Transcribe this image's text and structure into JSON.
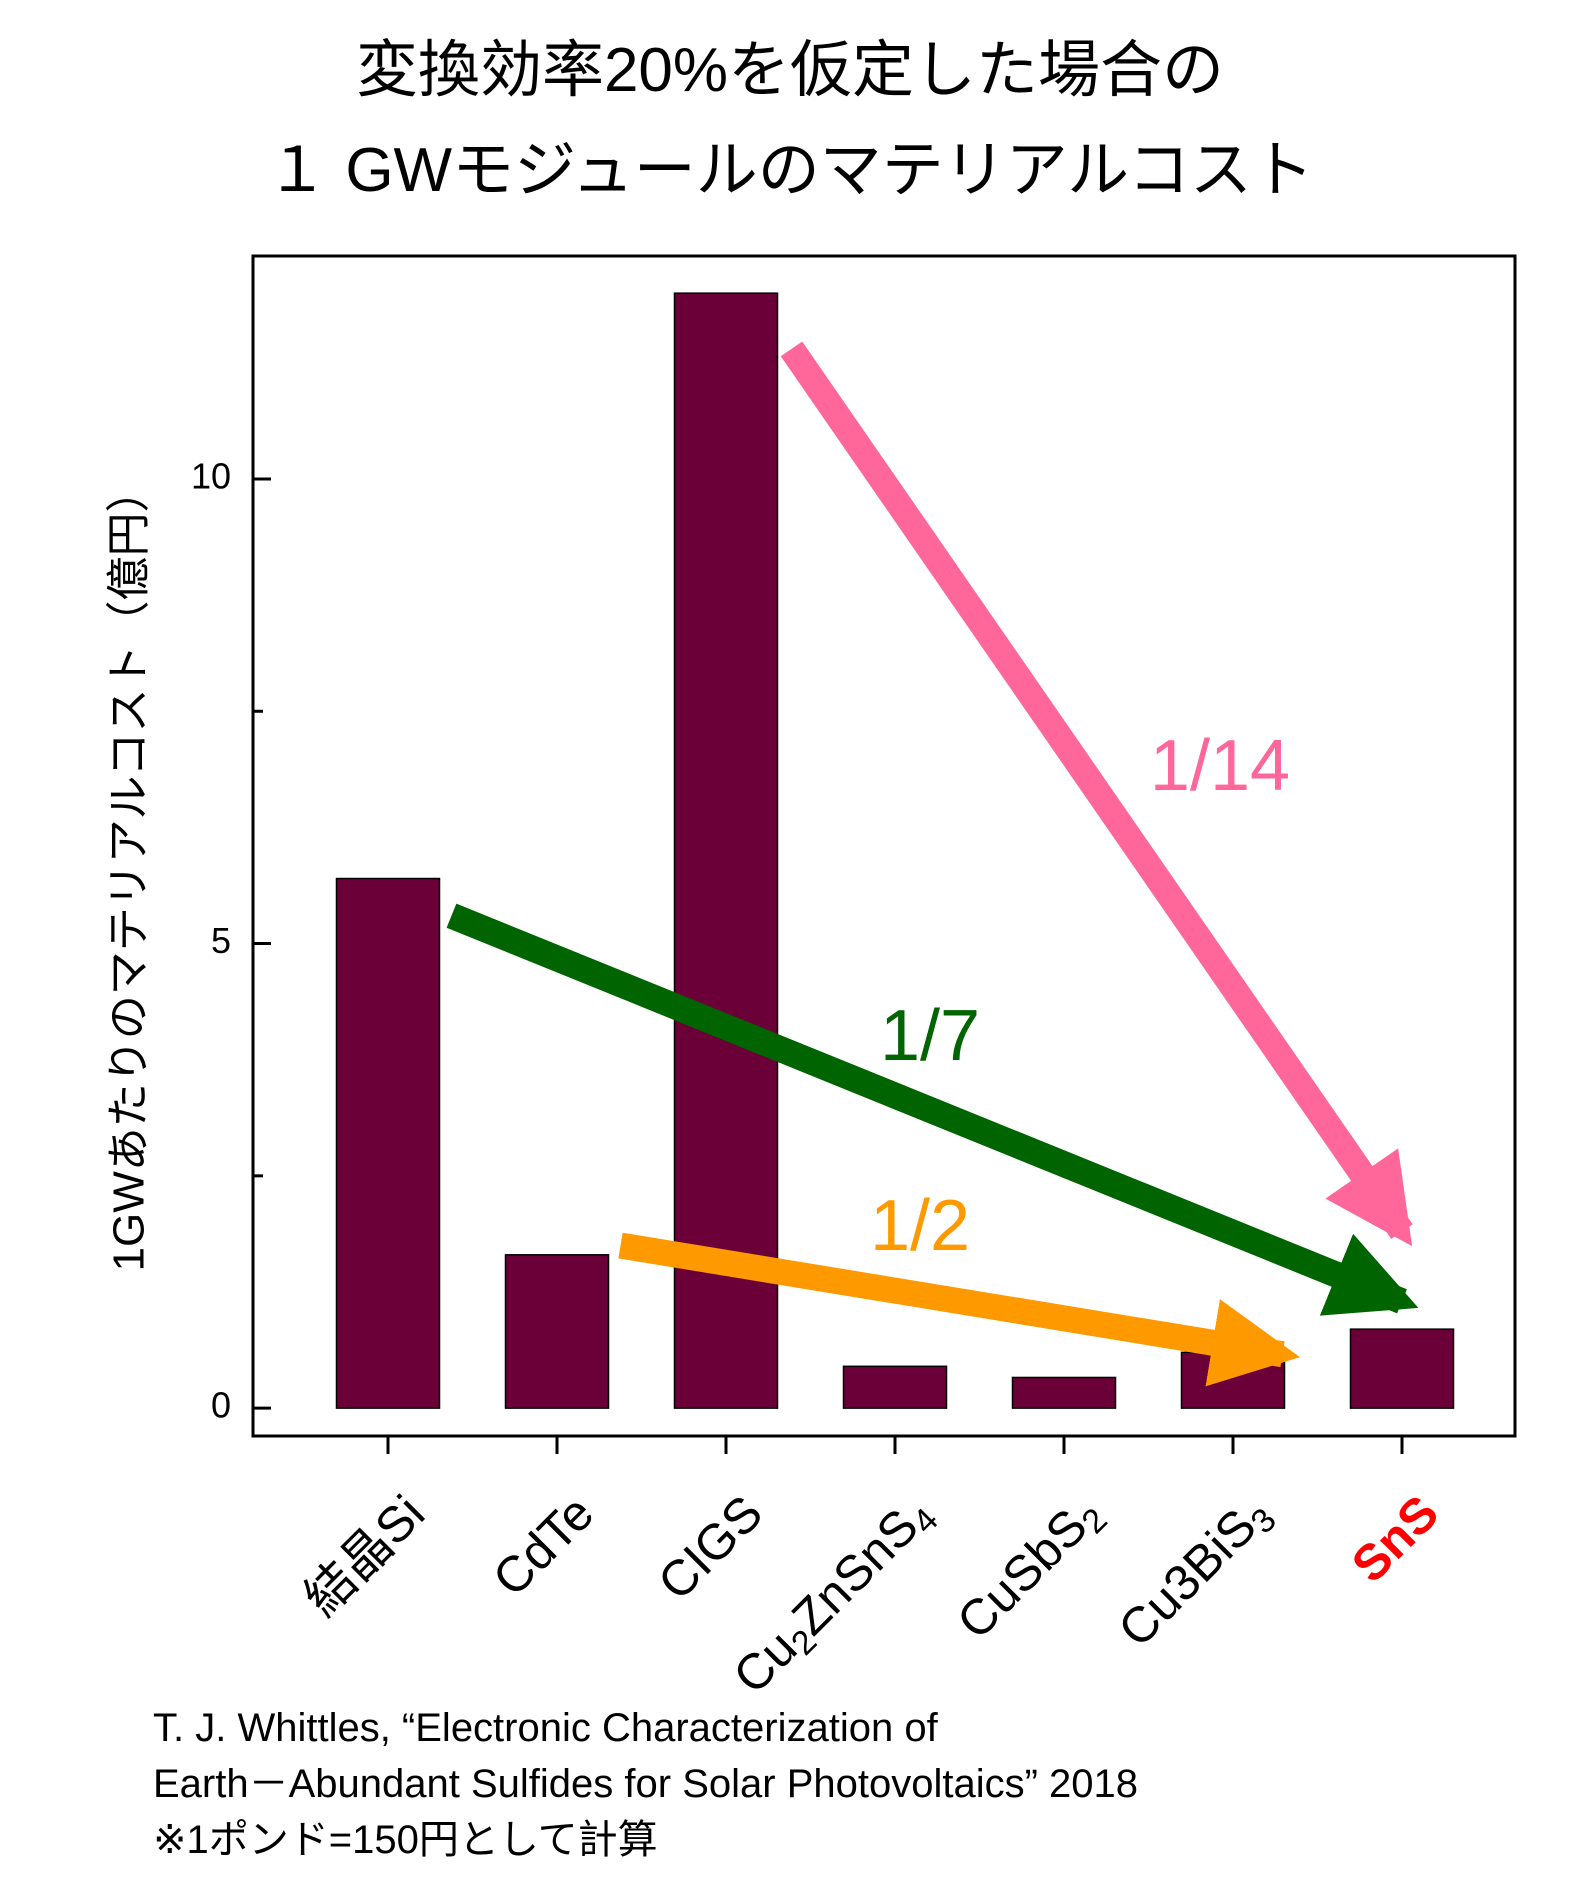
{
  "title": {
    "line1": "変換効率20%を仮定した場合の",
    "line2": "１ GWモジュールのマテリアルコスト"
  },
  "chart_data": {
    "type": "bar",
    "title": "変換効率20%を仮定した場合の １ GWモジュールのマテリアルコスト",
    "ylabel": "1GWあたりのマテリアルコスト（億円）",
    "xlabel": "",
    "ylim": [
      -0.3,
      12.4
    ],
    "yticks_major": [
      0,
      5,
      10
    ],
    "yticks_minor": [
      2.5,
      7.5
    ],
    "grid": false,
    "bar_color": "#6b0038",
    "categories": [
      {
        "base": "結晶Si",
        "sub": "",
        "rest": "",
        "sub2": "",
        "highlight": false
      },
      {
        "base": "CdTe",
        "sub": "",
        "rest": "",
        "sub2": "",
        "highlight": false
      },
      {
        "base": "CIGS",
        "sub": "",
        "rest": "",
        "sub2": "",
        "highlight": false
      },
      {
        "base": "Cu",
        "sub": "2",
        "rest": "ZnSnS",
        "sub2": "4",
        "highlight": false
      },
      {
        "base": "CuSbS",
        "sub": "2",
        "rest": "",
        "sub2": "",
        "highlight": false
      },
      {
        "base": "Cu3BiS",
        "sub": "3",
        "rest": "",
        "sub2": "",
        "highlight": false
      },
      {
        "base": "SnS",
        "sub": "",
        "rest": "",
        "sub2": "",
        "highlight": true
      }
    ],
    "values": [
      5.7,
      1.65,
      12.0,
      0.45,
      0.33,
      0.6,
      0.85
    ],
    "annotations": [
      {
        "text": "1/14",
        "color": "#ff6699",
        "from_category": 2,
        "from_value": 11.4,
        "to_category": 6,
        "to_value": 1.9
      },
      {
        "text": "1/7",
        "color": "#006400",
        "from_category": 0,
        "from_value": 5.3,
        "to_category": 6,
        "to_value": 1.15
      },
      {
        "text": "1/2",
        "color": "#ff9900",
        "from_category": 1,
        "from_value": 1.75,
        "to_category": 5.5,
        "to_value": 0.58
      }
    ],
    "highlight_color": "#ff0000"
  },
  "source": {
    "line1": "T. J. Whittles, “Electronic Characterization of",
    "line2": "Earth－Abundant Sulfides for Solar Photovoltaics” 2018",
    "line3": "※1ポンド=150円として計算"
  }
}
